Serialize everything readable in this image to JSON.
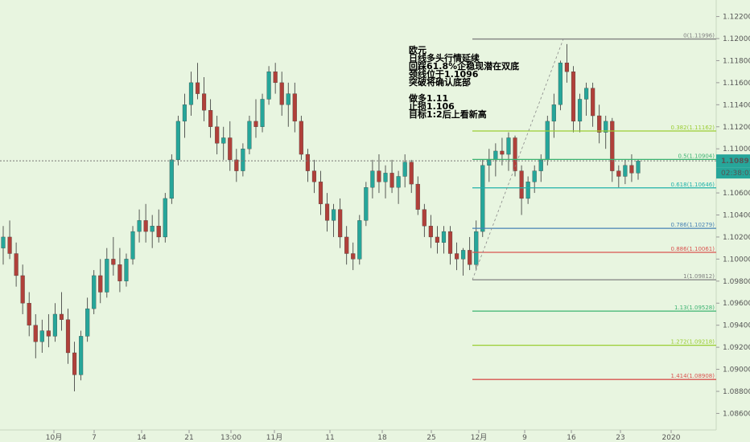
{
  "chart_data": {
    "type": "candlestick",
    "instrument": "欧元",
    "y_axis": {
      "ticks": [
        "1.12200",
        "1.12000",
        "1.11800",
        "1.11600",
        "1.11400",
        "1.11200",
        "1.11000",
        "1.10800",
        "1.10600",
        "1.10400",
        "1.10200",
        "1.10000",
        "1.09800",
        "1.09600",
        "1.09400",
        "1.09200",
        "1.09000",
        "1.08800",
        "1.08600"
      ],
      "range": [
        1.0845,
        1.1235
      ]
    },
    "x_axis": {
      "ticks": [
        "10月",
        "7",
        "14",
        "21",
        "13:00",
        "11月",
        "11",
        "18",
        "25",
        "12月",
        "9",
        "16",
        "23",
        "2020"
      ]
    },
    "price_marker": {
      "price_label": "1.10891",
      "countdown": "02:38:02",
      "value": 1.10891
    },
    "annotation_lines": [
      "欧元",
      "日线多头行情延续",
      "回踩61.8%企稳现潜在双底",
      "颈线位于1.1096",
      "突破将确认底部",
      "",
      "做多1.11",
      "止损1.106",
      "目标1:2后上看新高"
    ],
    "fibonacci": [
      {
        "label": "0(1.11996)",
        "value": 1.11996,
        "color": "#808080"
      },
      {
        "label": "0.382(1.11162)",
        "value": 1.11162,
        "color": "#9acd32"
      },
      {
        "label": "0.5(1.10904)",
        "value": 1.10904,
        "color": "#3cb371"
      },
      {
        "label": "0.618(1.10646)",
        "value": 1.10646,
        "color": "#20b2aa"
      },
      {
        "label": "0.786(1.10279)",
        "value": 1.10279,
        "color": "#4682b4"
      },
      {
        "label": "0.886(1.10061)",
        "value": 1.10061,
        "color": "#d9534f"
      },
      {
        "label": "1(1.09812)",
        "value": 1.09812,
        "color": "#808080"
      },
      {
        "label": "1.13(1.09528)",
        "value": 1.09528,
        "color": "#3cb371"
      },
      {
        "label": "1.272(1.09218)",
        "value": 1.09218,
        "color": "#9acd32"
      },
      {
        "label": "1.414(1.08908)",
        "value": 1.08908,
        "color": "#d9534f"
      }
    ],
    "candles": [
      [
        1.101,
        1.103,
        1.0995,
        1.102
      ],
      [
        1.102,
        1.1035,
        1.1,
        1.1005
      ],
      [
        1.1005,
        1.1015,
        1.0975,
        1.0985
      ],
      [
        1.0985,
        1.0995,
        1.095,
        1.096
      ],
      [
        1.096,
        1.097,
        1.093,
        1.094
      ],
      [
        1.094,
        1.095,
        1.091,
        1.0925
      ],
      [
        1.0925,
        1.0945,
        1.0915,
        1.0935
      ],
      [
        1.0935,
        1.095,
        1.092,
        1.093
      ],
      [
        1.093,
        1.096,
        1.0925,
        1.095
      ],
      [
        1.095,
        1.097,
        1.0935,
        1.0945
      ],
      [
        1.0945,
        1.0955,
        1.0905,
        1.0915
      ],
      [
        1.0915,
        1.0925,
        1.088,
        1.0895
      ],
      [
        1.0895,
        1.0935,
        1.089,
        1.093
      ],
      [
        1.093,
        1.0965,
        1.0925,
        1.0955
      ],
      [
        1.0955,
        1.099,
        1.095,
        1.0985
      ],
      [
        1.0985,
        1.1,
        1.096,
        1.097
      ],
      [
        1.097,
        1.101,
        1.0965,
        1.1
      ],
      [
        1.1,
        1.102,
        1.0985,
        1.0995
      ],
      [
        1.0995,
        1.101,
        1.097,
        1.098
      ],
      [
        1.098,
        1.1005,
        1.0975,
        1.1
      ],
      [
        1.1,
        1.103,
        1.0995,
        1.1025
      ],
      [
        1.1025,
        1.1045,
        1.1015,
        1.1035
      ],
      [
        1.1035,
        1.105,
        1.1015,
        1.1025
      ],
      [
        1.1025,
        1.104,
        1.101,
        1.103
      ],
      [
        1.103,
        1.1045,
        1.1015,
        1.102
      ],
      [
        1.102,
        1.106,
        1.1015,
        1.1055
      ],
      [
        1.1055,
        1.1095,
        1.105,
        1.109
      ],
      [
        1.109,
        1.113,
        1.1085,
        1.1125
      ],
      [
        1.1125,
        1.115,
        1.111,
        1.114
      ],
      [
        1.114,
        1.117,
        1.113,
        1.116
      ],
      [
        1.116,
        1.1178,
        1.1145,
        1.115
      ],
      [
        1.115,
        1.1165,
        1.1125,
        1.1135
      ],
      [
        1.1135,
        1.1145,
        1.111,
        1.112
      ],
      [
        1.112,
        1.113,
        1.1095,
        1.1105
      ],
      [
        1.1105,
        1.112,
        1.109,
        1.111
      ],
      [
        1.111,
        1.1125,
        1.108,
        1.109
      ],
      [
        1.109,
        1.11,
        1.107,
        1.108
      ],
      [
        1.108,
        1.1105,
        1.1075,
        1.11
      ],
      [
        1.11,
        1.113,
        1.1095,
        1.1125
      ],
      [
        1.1125,
        1.1145,
        1.111,
        1.112
      ],
      [
        1.112,
        1.115,
        1.1115,
        1.1145
      ],
      [
        1.1145,
        1.1175,
        1.114,
        1.117
      ],
      [
        1.117,
        1.1178,
        1.115,
        1.116
      ],
      [
        1.116,
        1.117,
        1.113,
        1.114
      ],
      [
        1.114,
        1.116,
        1.112,
        1.115
      ],
      [
        1.115,
        1.116,
        1.1115,
        1.1125
      ],
      [
        1.1125,
        1.113,
        1.109,
        1.1095
      ],
      [
        1.1095,
        1.11,
        1.107,
        1.108
      ],
      [
        1.108,
        1.109,
        1.106,
        1.107
      ],
      [
        1.107,
        1.108,
        1.104,
        1.105
      ],
      [
        1.105,
        1.106,
        1.1025,
        1.1035
      ],
      [
        1.1035,
        1.105,
        1.102,
        1.1045
      ],
      [
        1.1045,
        1.1055,
        1.101,
        1.102
      ],
      [
        1.102,
        1.103,
        1.0995,
        1.1005
      ],
      [
        1.1005,
        1.1015,
        1.099,
        1.1
      ],
      [
        1.1,
        1.104,
        1.0995,
        1.1035
      ],
      [
        1.1035,
        1.107,
        1.103,
        1.1065
      ],
      [
        1.1065,
        1.109,
        1.1055,
        1.108
      ],
      [
        1.108,
        1.1095,
        1.106,
        1.107
      ],
      [
        1.107,
        1.1085,
        1.1055,
        1.1078
      ],
      [
        1.1078,
        1.109,
        1.106,
        1.1065
      ],
      [
        1.1065,
        1.108,
        1.105,
        1.1075
      ],
      [
        1.1075,
        1.1095,
        1.1065,
        1.1088
      ],
      [
        1.1088,
        1.109,
        1.106,
        1.1068
      ],
      [
        1.1068,
        1.1075,
        1.104,
        1.1045
      ],
      [
        1.1045,
        1.105,
        1.102,
        1.103
      ],
      [
        1.103,
        1.104,
        1.101,
        1.102
      ],
      [
        1.102,
        1.103,
        1.1005,
        1.1015
      ],
      [
        1.1015,
        1.103,
        1.1005,
        1.1025
      ],
      [
        1.1025,
        1.103,
        1.0995,
        1.1005
      ],
      [
        1.1005,
        1.1015,
        1.099,
        1.1
      ],
      [
        1.1,
        1.101,
        1.0985,
        1.1008
      ],
      [
        1.1008,
        1.102,
        1.099,
        1.0995
      ],
      [
        1.0995,
        1.1035,
        1.099,
        1.1025
      ],
      [
        1.1025,
        1.109,
        1.102,
        1.1085
      ],
      [
        1.1085,
        1.11,
        1.107,
        1.109
      ],
      [
        1.109,
        1.1105,
        1.1075,
        1.1098
      ],
      [
        1.1098,
        1.111,
        1.1085,
        1.1095
      ],
      [
        1.1095,
        1.1115,
        1.108,
        1.111
      ],
      [
        1.111,
        1.1112,
        1.1075,
        1.108
      ],
      [
        1.108,
        1.1085,
        1.104,
        1.1055
      ],
      [
        1.1055,
        1.1075,
        1.105,
        1.107
      ],
      [
        1.107,
        1.1085,
        1.106,
        1.108
      ],
      [
        1.108,
        1.1095,
        1.107,
        1.109
      ],
      [
        1.109,
        1.113,
        1.1085,
        1.1125
      ],
      [
        1.1125,
        1.115,
        1.111,
        1.114
      ],
      [
        1.114,
        1.118,
        1.1135,
        1.1178
      ],
      [
        1.1178,
        1.1195,
        1.116,
        1.117
      ],
      [
        1.117,
        1.1175,
        1.1115,
        1.1125
      ],
      [
        1.1125,
        1.115,
        1.1115,
        1.1145
      ],
      [
        1.1145,
        1.116,
        1.113,
        1.1155
      ],
      [
        1.1155,
        1.116,
        1.112,
        1.113
      ],
      [
        1.113,
        1.114,
        1.1105,
        1.1115
      ],
      [
        1.1115,
        1.113,
        1.11,
        1.1125
      ],
      [
        1.1125,
        1.1128,
        1.107,
        1.108
      ],
      [
        1.108,
        1.1085,
        1.1065,
        1.1075
      ],
      [
        1.1075,
        1.109,
        1.1068,
        1.1085
      ],
      [
        1.1085,
        1.1095,
        1.107,
        1.1078
      ],
      [
        1.1078,
        1.109,
        1.1072,
        1.1089
      ]
    ]
  }
}
